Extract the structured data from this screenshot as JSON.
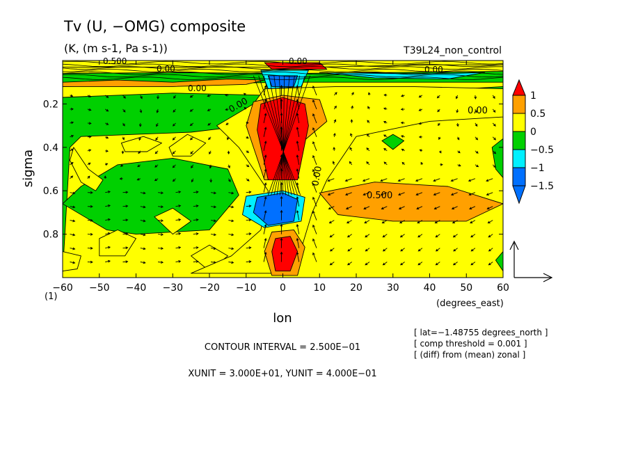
{
  "chart_data": {
    "type": "heatmap",
    "title": "Tv (U, −OMG) composite",
    "subtitle": "(K, (m s-1, Pa s-1))",
    "run_label": "T39L24_non_control",
    "xlabel": "lon",
    "x_units_label": "(degrees_east)",
    "ylabel": "sigma",
    "corner_label": "(1)",
    "xlim": [
      -60,
      60
    ],
    "ylim": [
      1.0,
      0.0
    ],
    "x_ticks": [
      -60,
      -50,
      -40,
      -30,
      -20,
      -10,
      0,
      10,
      20,
      30,
      40,
      50,
      60
    ],
    "x_tick_labels": [
      "−60",
      "−50",
      "−40",
      "−30",
      "−20",
      "−10",
      "0",
      "10",
      "20",
      "30",
      "40",
      "50",
      "60"
    ],
    "y_ticks": [
      0.2,
      0.4,
      0.6,
      0.8
    ],
    "y_tick_labels": [
      "0.2",
      "0.4",
      "0.6",
      "0.8"
    ],
    "colorbar": {
      "labels": [
        "1",
        "0.5",
        "0",
        "−0.5",
        "−1",
        "−1.5"
      ],
      "bands": [
        {
          "range": "> 1",
          "color": "#ff0000"
        },
        {
          "range": "0.5 to 1",
          "color": "#ffa000"
        },
        {
          "range": "0 to 0.5",
          "color": "#ffff00"
        },
        {
          "range": "-0.5 to 0",
          "color": "#00d000"
        },
        {
          "range": "-1 to -0.5",
          "color": "#00f0ff"
        },
        {
          "range": "-1.5 to -1",
          "color": "#0070ff"
        },
        {
          "range": "< -1.5",
          "color": "#0070ff"
        }
      ]
    },
    "contour_labels": [
      "0.500",
      "0.500",
      "0.00",
      "0.00",
      "0.00",
      "0.00",
      "0.00",
      "0.00",
      "0.00"
    ],
    "info": {
      "contour_interval": "CONTOUR INTERVAL = 2.500E−01",
      "units": "XUNIT = 3.000E+01, YUNIT = 4.000E−01",
      "lat": "[ lat=−1.48755 degrees_north ]",
      "threshold": "[ comp threshold = 0.001 ]",
      "diff": "[ (diff) from (mean) zonal ]"
    },
    "regions": [
      {
        "level": "neg",
        "points": [
          [
            -60,
            0.98
          ],
          [
            -58,
            0.4
          ],
          [
            -55,
            0.35
          ],
          [
            -40,
            0.34
          ],
          [
            -25,
            0.33
          ],
          [
            -10,
            0.3
          ],
          [
            -5,
            0.16
          ],
          [
            -30,
            0.15
          ],
          [
            -45,
            0.16
          ],
          [
            -60,
            0.17
          ]
        ]
      },
      {
        "level": "neg",
        "points": [
          [
            -60,
            0.66
          ],
          [
            -48,
            0.78
          ],
          [
            -40,
            0.8
          ],
          [
            -20,
            0.78
          ],
          [
            -12,
            0.62
          ],
          [
            -15,
            0.5
          ],
          [
            -30,
            0.45
          ],
          [
            -45,
            0.48
          ],
          [
            -55,
            0.58
          ]
        ]
      },
      {
        "level": "neg",
        "points": [
          [
            8,
            0.14
          ],
          [
            20,
            0.17
          ],
          [
            35,
            0.16
          ],
          [
            50,
            0.13
          ],
          [
            60,
            0.12
          ],
          [
            60,
            0.2
          ],
          [
            45,
            0.18
          ],
          [
            30,
            0.19
          ],
          [
            15,
            0.18
          ]
        ]
      },
      {
        "level": "neg",
        "points": [
          [
            27,
            0.37
          ],
          [
            30,
            0.34
          ],
          [
            33,
            0.37
          ],
          [
            30,
            0.41
          ]
        ]
      },
      {
        "level": "neg",
        "points": [
          [
            57,
            0.4
          ],
          [
            60,
            0.36
          ],
          [
            60,
            0.54
          ],
          [
            58,
            0.5
          ]
        ]
      },
      {
        "level": "neg",
        "points": [
          [
            58,
            0.92
          ],
          [
            60,
            0.88
          ],
          [
            60,
            0.97
          ]
        ]
      },
      {
        "level": "neg",
        "points": [
          [
            -60,
            0.06
          ],
          [
            -30,
            0.055
          ],
          [
            0,
            0.06
          ],
          [
            30,
            0.055
          ],
          [
            60,
            0.05
          ],
          [
            60,
            0.1
          ],
          [
            30,
            0.1
          ],
          [
            0,
            0.1
          ],
          [
            -30,
            0.11
          ],
          [
            -60,
            0.12
          ]
        ]
      },
      {
        "level": "pos1",
        "points": [
          [
            -57,
            0.4
          ],
          [
            -53,
            0.5
          ],
          [
            -49,
            0.55
          ],
          [
            -51,
            0.6
          ],
          [
            -55,
            0.56
          ],
          [
            -58,
            0.46
          ]
        ]
      },
      {
        "level": "pos1",
        "points": [
          [
            -44,
            0.38
          ],
          [
            -38,
            0.35
          ],
          [
            -33,
            0.38
          ],
          [
            -37,
            0.42
          ],
          [
            -43,
            0.42
          ]
        ]
      },
      {
        "level": "pos1",
        "points": [
          [
            -31,
            0.4
          ],
          [
            -26,
            0.34
          ],
          [
            -21,
            0.38
          ],
          [
            -25,
            0.44
          ],
          [
            -30,
            0.44
          ]
        ]
      },
      {
        "level": "pos1",
        "points": [
          [
            -50,
            0.82
          ],
          [
            -45,
            0.78
          ],
          [
            -40,
            0.82
          ],
          [
            -43,
            0.9
          ],
          [
            -50,
            0.9
          ]
        ]
      },
      {
        "level": "pos1",
        "points": [
          [
            -35,
            0.72
          ],
          [
            -30,
            0.68
          ],
          [
            -25,
            0.74
          ],
          [
            -30,
            0.8
          ]
        ]
      },
      {
        "level": "pos1",
        "points": [
          [
            -25,
            0.9
          ],
          [
            -20,
            0.85
          ],
          [
            -15,
            0.9
          ],
          [
            -20,
            0.97
          ]
        ]
      },
      {
        "level": "pos1",
        "points": [
          [
            -60,
            0.88
          ],
          [
            -55,
            0.9
          ],
          [
            -56,
            0.96
          ],
          [
            -60,
            0.97
          ]
        ]
      },
      {
        "level": "pos1",
        "points": [
          [
            -12,
            0.4
          ],
          [
            -4,
            0.6
          ],
          [
            -6,
            0.78
          ],
          [
            -14,
            0.9
          ],
          [
            -25,
            0.98
          ],
          [
            -8,
            0.98
          ],
          [
            3,
            0.98
          ],
          [
            8,
            0.7
          ],
          [
            12,
            0.55
          ],
          [
            20,
            0.35
          ],
          [
            40,
            0.28
          ],
          [
            60,
            0.26
          ],
          [
            60,
            0.13
          ],
          [
            35,
            0.12
          ],
          [
            15,
            0.12
          ],
          [
            -5,
            0.13
          ],
          [
            -8,
            0.2
          ],
          [
            -18,
            0.3
          ]
        ]
      },
      {
        "level": "pos1",
        "points": [
          [
            -60,
            0.03
          ],
          [
            -20,
            0.03
          ],
          [
            10,
            0.03
          ],
          [
            40,
            0.02
          ],
          [
            60,
            0.02
          ],
          [
            60,
            0.05
          ],
          [
            30,
            0.055
          ],
          [
            0,
            0.06
          ],
          [
            -30,
            0.055
          ],
          [
            -60,
            0.06
          ]
        ]
      },
      {
        "level": "pos2",
        "points": [
          [
            -60,
            0.1
          ],
          [
            -45,
            0.09
          ],
          [
            -30,
            0.1
          ],
          [
            -15,
            0.085
          ],
          [
            -5,
            0.09
          ],
          [
            -10,
            0.11
          ],
          [
            -30,
            0.12
          ],
          [
            -60,
            0.12
          ]
        ]
      },
      {
        "level": "pos2",
        "points": [
          [
            10,
            0.61
          ],
          [
            25,
            0.56
          ],
          [
            45,
            0.58
          ],
          [
            60,
            0.66
          ],
          [
            50,
            0.74
          ],
          [
            30,
            0.74
          ],
          [
            15,
            0.71
          ]
        ]
      },
      {
        "level": "pos2",
        "points": [
          [
            -8,
            0.19
          ],
          [
            0,
            0.16
          ],
          [
            10,
            0.18
          ],
          [
            12,
            0.28
          ],
          [
            5,
            0.38
          ],
          [
            3,
            0.55
          ],
          [
            -5,
            0.55
          ],
          [
            -10,
            0.3
          ]
        ]
      },
      {
        "level": "pos2",
        "points": [
          [
            -3,
            0.79
          ],
          [
            3,
            0.78
          ],
          [
            6,
            0.86
          ],
          [
            4,
            0.99
          ],
          [
            -3,
            0.99
          ],
          [
            -5,
            0.88
          ]
        ]
      },
      {
        "level": "pos3",
        "points": [
          [
            -6,
            0.2
          ],
          [
            0,
            0.17
          ],
          [
            6,
            0.2
          ],
          [
            7,
            0.3
          ],
          [
            4,
            0.55
          ],
          [
            -4,
            0.55
          ],
          [
            -7,
            0.32
          ]
        ]
      },
      {
        "level": "pos3",
        "points": [
          [
            -2,
            0.82
          ],
          [
            2,
            0.81
          ],
          [
            4,
            0.88
          ],
          [
            2,
            0.97
          ],
          [
            -2,
            0.97
          ],
          [
            -3,
            0.88
          ]
        ]
      },
      {
        "level": "pos3",
        "points": [
          [
            -5,
            0.01
          ],
          [
            10,
            0.01
          ],
          [
            12,
            0.04
          ],
          [
            -3,
            0.04
          ]
        ]
      },
      {
        "level": "neg1",
        "points": [
          [
            -10,
            0.625
          ],
          [
            0,
            0.6
          ],
          [
            6,
            0.63
          ],
          [
            5,
            0.74
          ],
          [
            -5,
            0.77
          ],
          [
            -11,
            0.71
          ]
        ]
      },
      {
        "level": "neg1",
        "points": [
          [
            -6,
            0.045
          ],
          [
            7,
            0.045
          ],
          [
            5,
            0.12
          ],
          [
            -4,
            0.13
          ]
        ]
      },
      {
        "level": "neg1",
        "points": [
          [
            10,
            0.055
          ],
          [
            30,
            0.06
          ],
          [
            45,
            0.06
          ],
          [
            55,
            0.055
          ],
          [
            45,
            0.085
          ],
          [
            25,
            0.08
          ]
        ]
      },
      {
        "level": "neg2",
        "points": [
          [
            -7,
            0.63
          ],
          [
            0,
            0.61
          ],
          [
            4,
            0.64
          ],
          [
            3,
            0.74
          ],
          [
            -4,
            0.76
          ],
          [
            -8,
            0.7
          ]
        ]
      },
      {
        "level": "neg2",
        "points": [
          [
            -4,
            0.07
          ],
          [
            4,
            0.07
          ],
          [
            3,
            0.12
          ],
          [
            -3,
            0.12
          ]
        ]
      }
    ]
  }
}
